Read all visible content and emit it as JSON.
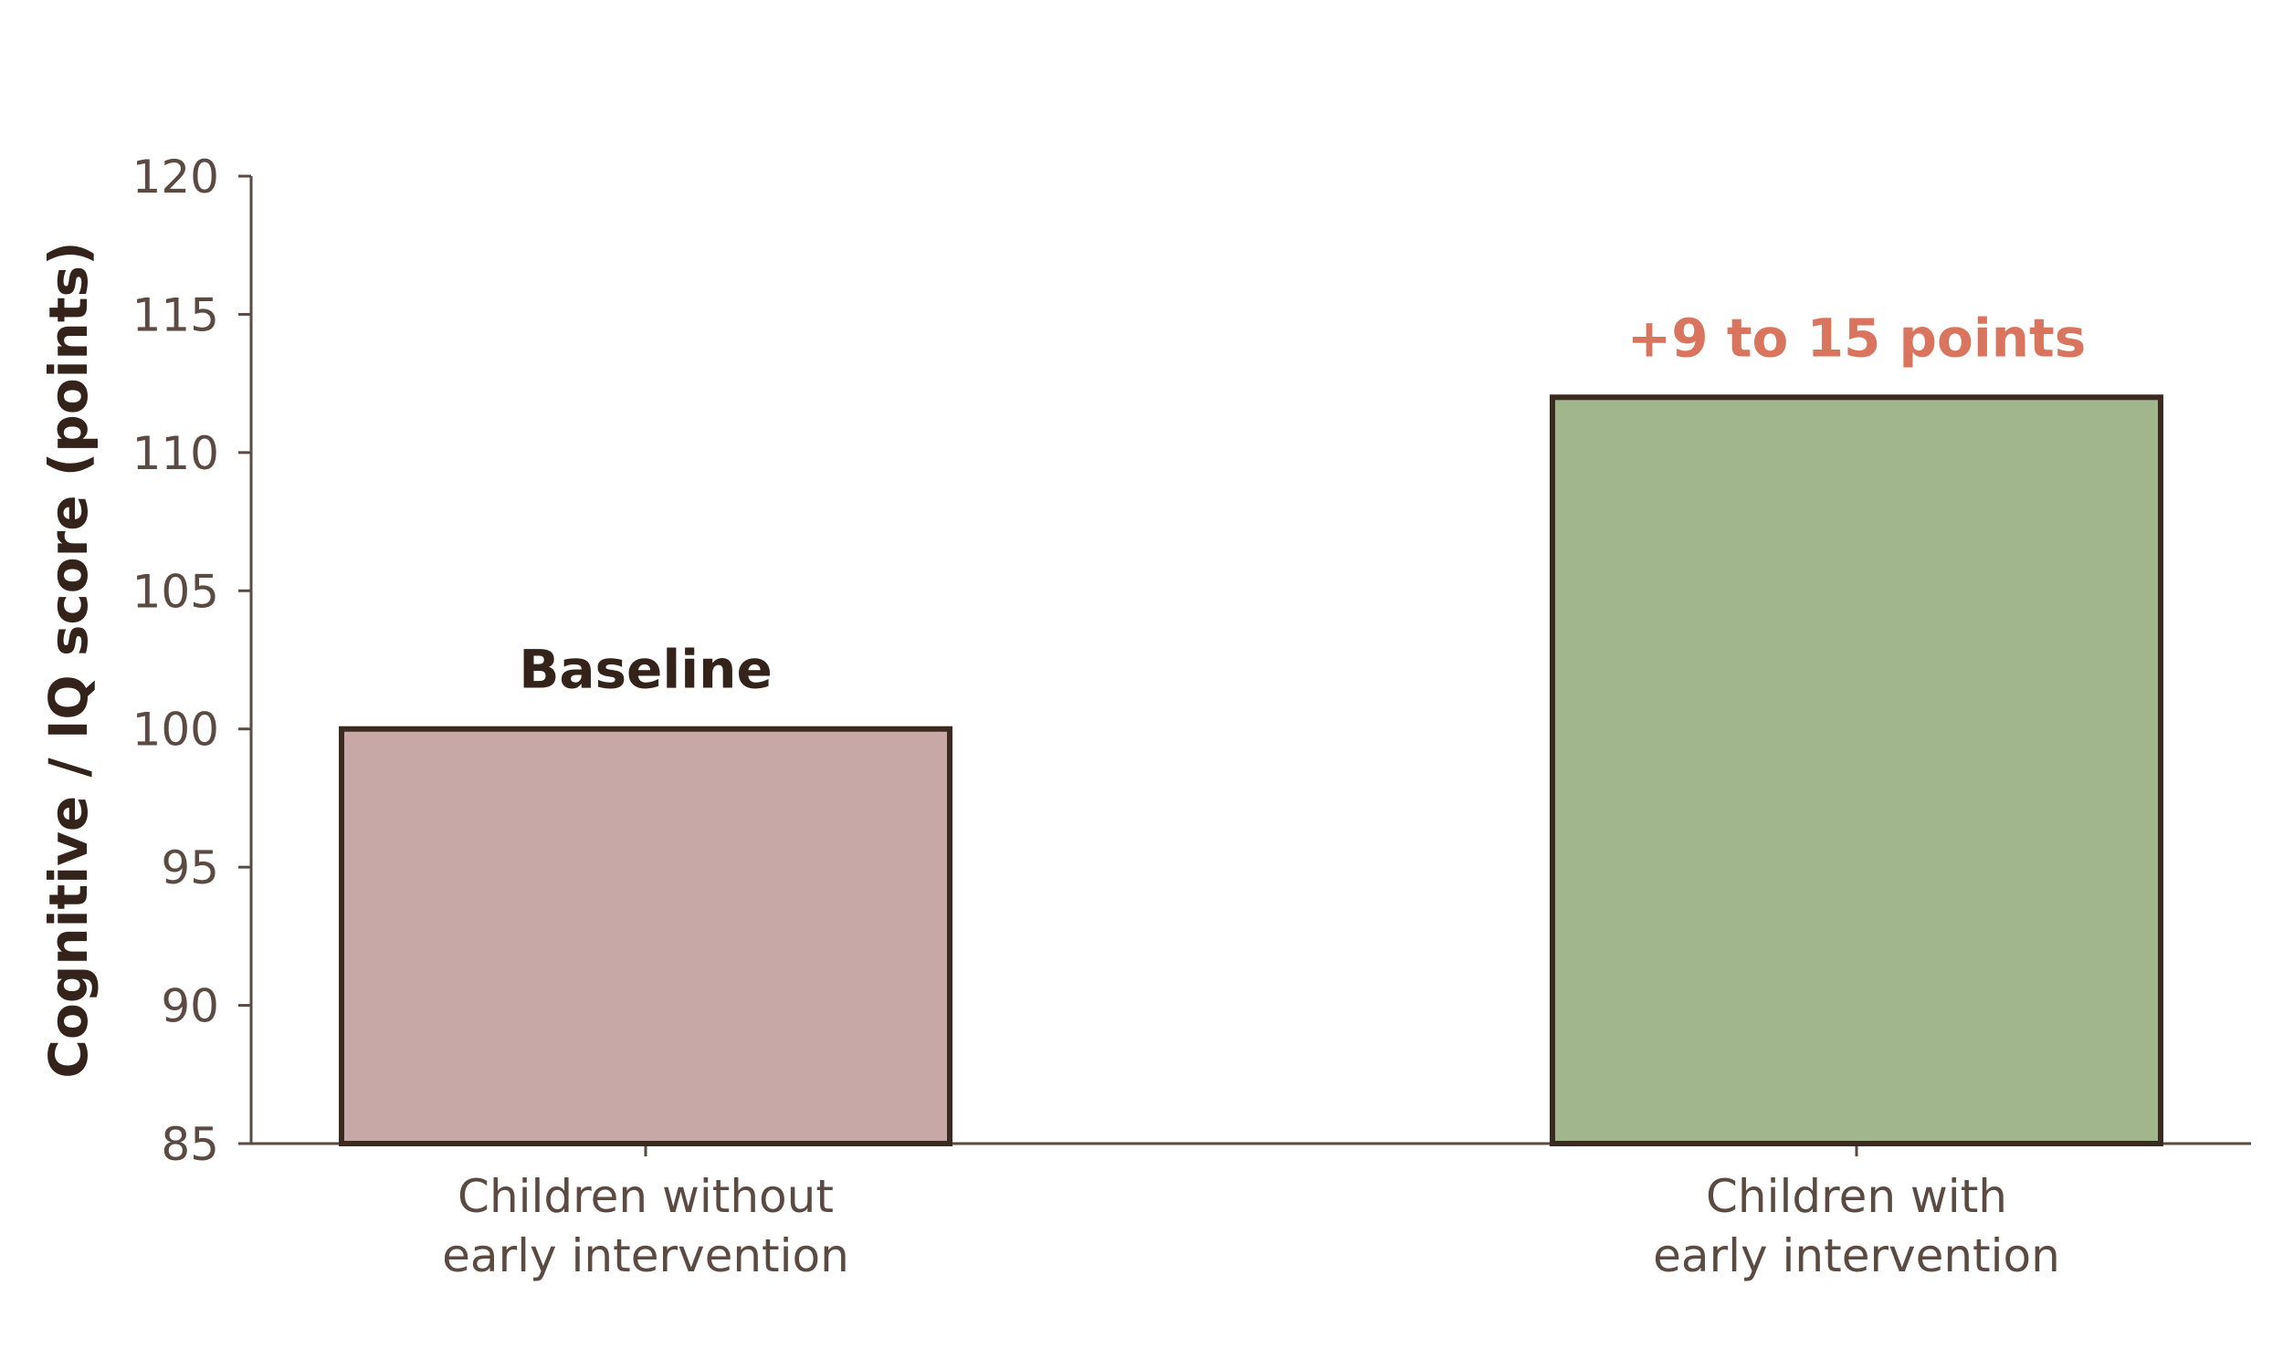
{
  "chart_data": {
    "type": "bar",
    "categories": [
      [
        "Children without",
        "early intervention"
      ],
      [
        "Children with",
        "early intervention"
      ]
    ],
    "values": [
      100,
      112
    ],
    "data_labels": [
      "Baseline",
      "+9 to 15 points"
    ],
    "title": "",
    "xlabel": "",
    "ylabel": "Cognitive / IQ score (points)",
    "ylim": [
      85,
      120
    ],
    "yticks": [
      85,
      90,
      95,
      100,
      105,
      110,
      115,
      120
    ],
    "grid": false,
    "legend": "none",
    "colors": {
      "bars": [
        "#c7a8a6",
        "#a2b68e"
      ],
      "bar_edge": "#3b2a1f",
      "axis": "#5a4a42",
      "label_baseline": "#33231a",
      "label_highlight": "#d9755e"
    }
  }
}
